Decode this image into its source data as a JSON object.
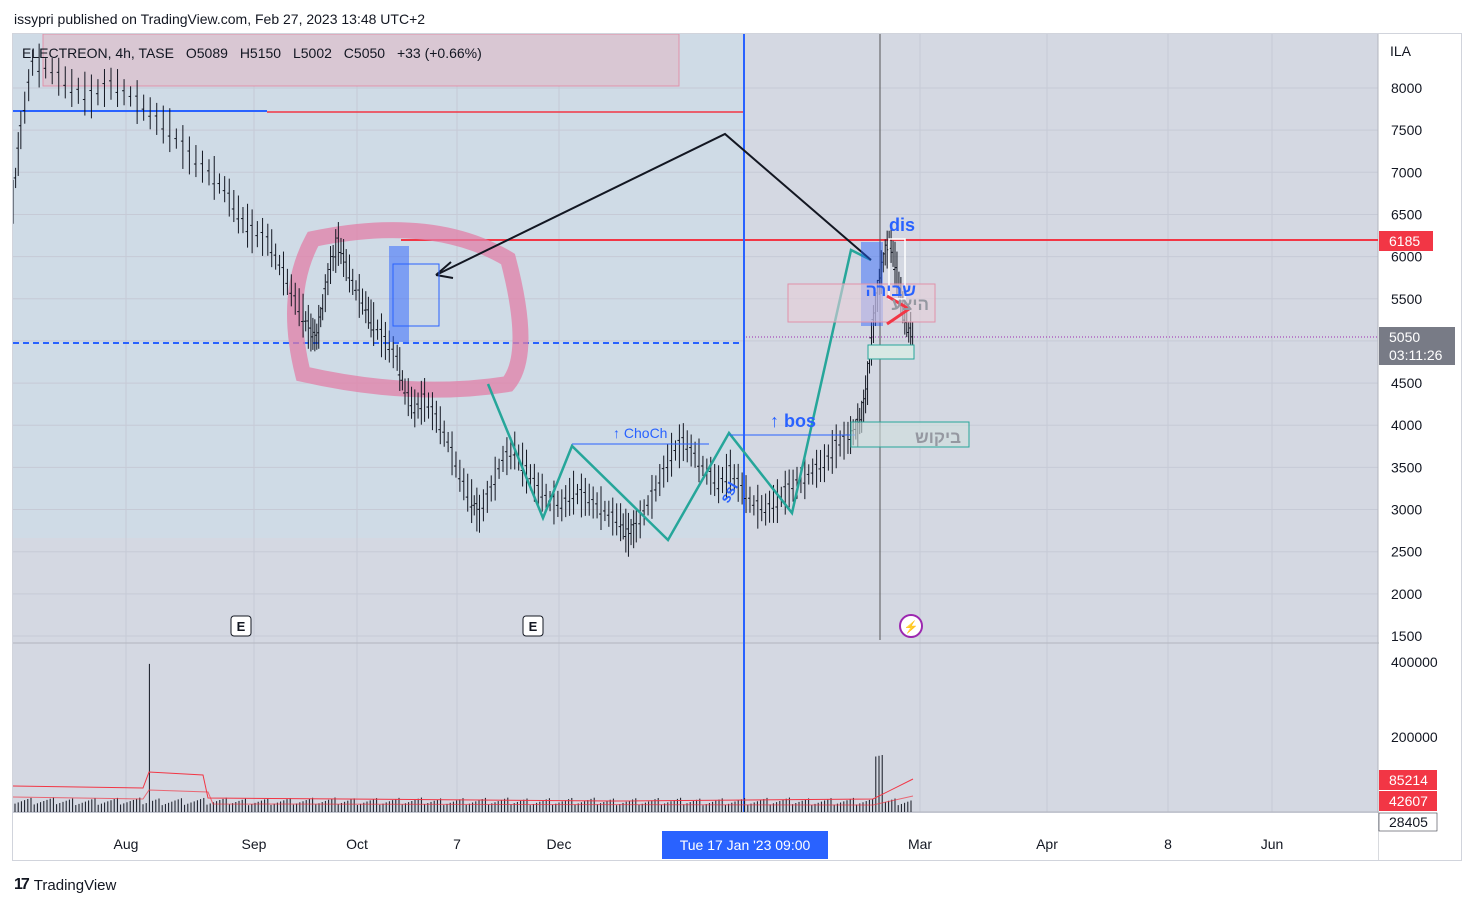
{
  "attribution": "issypri published on TradingView.com, Feb 27, 2023 13:48 UTC+2",
  "footer": {
    "brand": "TradingView",
    "logo_icon": "tradingview-logo-icon"
  },
  "legend": {
    "symbol": "ELECTREON, 4h, TASE",
    "open": "O5089",
    "high": "H5150",
    "low": "L5002",
    "close": "C5050",
    "change": "+33 (+0.66%)"
  },
  "chart_data": {
    "type": "bar",
    "currency": "ILA",
    "price_axis_ticks": [
      "8000",
      "7500",
      "7000",
      "6500",
      "6000",
      "5500",
      "5000",
      "4500",
      "4000",
      "3500",
      "3000",
      "2500",
      "2000",
      "1500"
    ],
    "volume_axis_ticks": [
      "400000",
      "200000"
    ],
    "time_axis_ticks": [
      "Aug",
      "Sep",
      "Oct",
      "7",
      "Dec",
      "Mar",
      "Apr",
      "8",
      "Jun"
    ],
    "crosshair_time": "Tue 17 Jan '23   09:00",
    "price_badges": [
      {
        "value": "6185",
        "color": "#f23645"
      },
      {
        "value": "5050",
        "sub": "03:11:26",
        "color": "#787b86"
      }
    ],
    "volume_badges": [
      {
        "value": "85214",
        "color": "#f23645"
      },
      {
        "value": "42607",
        "color": "#f23645"
      },
      {
        "value": "28405",
        "color": "#ffffff"
      }
    ],
    "price_path": [
      [
        0,
        6650
      ],
      [
        4,
        7500
      ],
      [
        10,
        8300
      ],
      [
        20,
        8200
      ],
      [
        30,
        8000
      ],
      [
        40,
        7900
      ],
      [
        50,
        8050
      ],
      [
        60,
        7900
      ],
      [
        70,
        7700
      ],
      [
        80,
        7500
      ],
      [
        90,
        7200
      ],
      [
        100,
        7000
      ],
      [
        108,
        6800
      ],
      [
        115,
        6500
      ],
      [
        122,
        6300
      ],
      [
        130,
        6200
      ],
      [
        136,
        5900
      ],
      [
        142,
        5600
      ],
      [
        148,
        5300
      ],
      [
        152,
        5100
      ],
      [
        155,
        5050
      ],
      [
        158,
        5400
      ],
      [
        162,
        5900
      ],
      [
        166,
        6150
      ],
      [
        170,
        5900
      ],
      [
        175,
        5600
      ],
      [
        180,
        5400
      ],
      [
        184,
        5200
      ],
      [
        190,
        5000
      ],
      [
        196,
        4800
      ],
      [
        200,
        4400
      ],
      [
        205,
        4200
      ],
      [
        210,
        4300
      ],
      [
        216,
        4100
      ],
      [
        222,
        3800
      ],
      [
        228,
        3400
      ],
      [
        234,
        3100
      ],
      [
        238,
        2950
      ],
      [
        244,
        3250
      ],
      [
        250,
        3600
      ],
      [
        256,
        3700
      ],
      [
        262,
        3450
      ],
      [
        268,
        3250
      ],
      [
        274,
        3100
      ],
      [
        280,
        3050
      ],
      [
        286,
        3200
      ],
      [
        292,
        3150
      ],
      [
        298,
        3050
      ],
      [
        304,
        2950
      ],
      [
        310,
        2850
      ],
      [
        314,
        2700
      ],
      [
        318,
        2800
      ],
      [
        324,
        3050
      ],
      [
        330,
        3350
      ],
      [
        336,
        3650
      ],
      [
        342,
        3800
      ],
      [
        348,
        3650
      ],
      [
        354,
        3450
      ],
      [
        360,
        3300
      ],
      [
        366,
        3450
      ],
      [
        372,
        3250
      ],
      [
        378,
        3050
      ],
      [
        384,
        3000
      ],
      [
        390,
        3100
      ],
      [
        396,
        3250
      ],
      [
        402,
        3350
      ],
      [
        408,
        3450
      ],
      [
        414,
        3550
      ],
      [
        420,
        3750
      ],
      [
        426,
        3850
      ],
      [
        430,
        3950
      ],
      [
        433,
        4100
      ],
      [
        436,
        4500
      ],
      [
        439,
        5200
      ],
      [
        442,
        5700
      ],
      [
        445,
        6050
      ],
      [
        448,
        6150
      ],
      [
        451,
        5800
      ],
      [
        454,
        5400
      ],
      [
        457,
        5100
      ],
      [
        460,
        5050
      ]
    ],
    "annotations": [
      {
        "text": "dis",
        "color": "#2962ff"
      },
      {
        "text": "↑ ChoCh",
        "color": "#2962ff"
      },
      {
        "text": "↑ bos",
        "color": "#2962ff"
      },
      {
        "text": "ssl",
        "color": "#2962ff"
      },
      {
        "text": "ביקוש",
        "color": "#9598a1"
      },
      {
        "text": "שבירה",
        "color": "#2962ff"
      },
      {
        "text": "היצע",
        "color": "#9598a1"
      }
    ],
    "earnings_markers": [
      "E",
      "E"
    ],
    "grid": true
  }
}
